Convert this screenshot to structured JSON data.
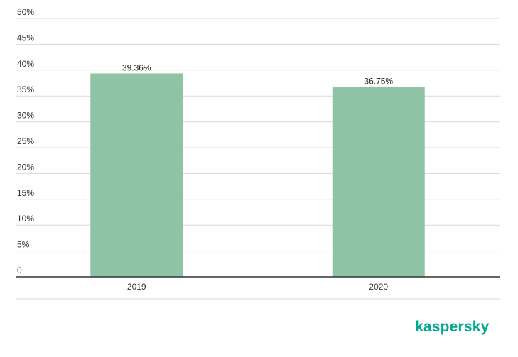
{
  "brand": {
    "logo_text": "kaspersky",
    "color": "#00a88e"
  },
  "colors": {
    "bar": "#8fc3a6",
    "grid": "#d9d9d9",
    "axis": "#333333"
  },
  "chart_data": {
    "type": "bar",
    "categories": [
      "2019",
      "2020"
    ],
    "values": [
      39.36,
      36.75
    ],
    "value_labels": [
      "39.36%",
      "36.75%"
    ],
    "y_ticks": [
      0,
      5,
      10,
      15,
      20,
      25,
      30,
      35,
      40,
      45,
      50
    ],
    "y_tick_labels": [
      "0",
      "5%",
      "10%",
      "15%",
      "20%",
      "25%",
      "30%",
      "35%",
      "40%",
      "45%",
      "50%"
    ],
    "ylim": [
      0,
      50
    ],
    "grid": true,
    "legend": "none"
  }
}
